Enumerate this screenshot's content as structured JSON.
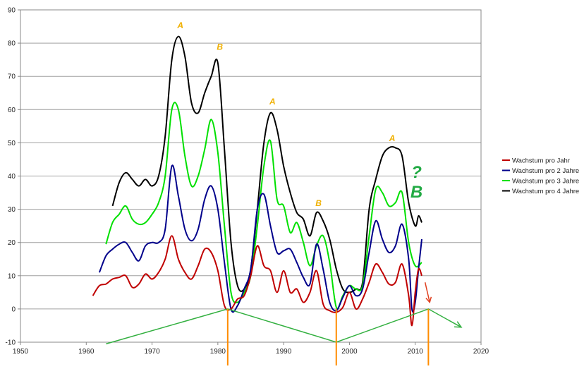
{
  "chart_data": {
    "type": "line",
    "title": "",
    "xlabel": "",
    "ylabel": "",
    "xlim": [
      1950,
      2020
    ],
    "ylim": [
      -10,
      90
    ],
    "x_ticks": [
      "1950",
      "1960",
      "1970",
      "1980",
      "1990",
      "2000",
      "2010",
      "2020"
    ],
    "y_ticks": [
      "-10",
      "0",
      "10",
      "20",
      "30",
      "40",
      "50",
      "60",
      "70",
      "80",
      "90"
    ],
    "grid": "horizontal",
    "legend_position": "right",
    "series": [
      {
        "name": "Wachstum pro Jahr",
        "color": "#c00000",
        "points": [
          [
            1961,
            4
          ],
          [
            1962,
            7
          ],
          [
            1963,
            7.5
          ],
          [
            1964,
            9
          ],
          [
            1965,
            9.5
          ],
          [
            1966,
            10
          ],
          [
            1967,
            6.5
          ],
          [
            1968,
            7.5
          ],
          [
            1969,
            10.5
          ],
          [
            1970,
            9
          ],
          [
            1971,
            11
          ],
          [
            1972,
            15
          ],
          [
            1973,
            22
          ],
          [
            1974,
            15
          ],
          [
            1975,
            11
          ],
          [
            1976,
            9
          ],
          [
            1977,
            13
          ],
          [
            1978,
            18
          ],
          [
            1979,
            17
          ],
          [
            1980,
            11.5
          ],
          [
            1981,
            1
          ],
          [
            1982,
            0
          ],
          [
            1983,
            3
          ],
          [
            1984,
            4
          ],
          [
            1985,
            10
          ],
          [
            1986,
            19
          ],
          [
            1987,
            13
          ],
          [
            1988,
            11.5
          ],
          [
            1989,
            5
          ],
          [
            1990,
            11.5
          ],
          [
            1991,
            5
          ],
          [
            1992,
            6
          ],
          [
            1993,
            2
          ],
          [
            1994,
            5
          ],
          [
            1995,
            11.5
          ],
          [
            1996,
            1.5
          ],
          [
            1997,
            -0.5
          ],
          [
            1998,
            -1
          ],
          [
            1999,
            0.5
          ],
          [
            2000,
            5
          ],
          [
            2001,
            0
          ],
          [
            2002,
            3
          ],
          [
            2003,
            8
          ],
          [
            2004,
            13.5
          ],
          [
            2005,
            11
          ],
          [
            2006,
            7.5
          ],
          [
            2007,
            8
          ],
          [
            2008,
            13.5
          ],
          [
            2009,
            4
          ],
          [
            2009.5,
            -5
          ],
          [
            2010,
            5
          ],
          [
            2010.5,
            12
          ],
          [
            2011,
            10
          ]
        ]
      },
      {
        "name": "Wachstum pro 2 Jahre",
        "color": "#00008b",
        "points": [
          [
            1962,
            11
          ],
          [
            1963,
            16
          ],
          [
            1964,
            18
          ],
          [
            1965,
            19.5
          ],
          [
            1966,
            20
          ],
          [
            1967,
            17
          ],
          [
            1968,
            14.5
          ],
          [
            1969,
            19
          ],
          [
            1970,
            20
          ],
          [
            1971,
            20
          ],
          [
            1972,
            24
          ],
          [
            1973,
            43
          ],
          [
            1974,
            34
          ],
          [
            1975,
            24
          ],
          [
            1976,
            20.5
          ],
          [
            1977,
            24
          ],
          [
            1978,
            33
          ],
          [
            1979,
            37
          ],
          [
            1980,
            30
          ],
          [
            1981,
            14
          ],
          [
            1982,
            0
          ],
          [
            1983,
            1
          ],
          [
            1984,
            6
          ],
          [
            1985,
            12
          ],
          [
            1986,
            30
          ],
          [
            1987,
            34.5
          ],
          [
            1988,
            25
          ],
          [
            1989,
            17
          ],
          [
            1990,
            17.5
          ],
          [
            1991,
            18
          ],
          [
            1992,
            14
          ],
          [
            1993,
            9.5
          ],
          [
            1994,
            7.5
          ],
          [
            1995,
            19.5
          ],
          [
            1996,
            12
          ],
          [
            1997,
            2
          ],
          [
            1998,
            -0.5
          ],
          [
            1999,
            3.5
          ],
          [
            2000,
            7
          ],
          [
            2001,
            4
          ],
          [
            2002,
            6
          ],
          [
            2003,
            17
          ],
          [
            2004,
            26.5
          ],
          [
            2005,
            21
          ],
          [
            2006,
            17
          ],
          [
            2007,
            19
          ],
          [
            2008,
            25.5
          ],
          [
            2009,
            15
          ],
          [
            2009.5,
            0
          ],
          [
            2010,
            2
          ],
          [
            2010.5,
            12
          ],
          [
            2011,
            21
          ]
        ]
      },
      {
        "name": "Wachstum pro 3 Jahre",
        "color": "#00e000",
        "points": [
          [
            1963,
            19.5
          ],
          [
            1964,
            26
          ],
          [
            1965,
            28.5
          ],
          [
            1966,
            31
          ],
          [
            1967,
            27
          ],
          [
            1968,
            25.5
          ],
          [
            1969,
            26
          ],
          [
            1970,
            28.5
          ],
          [
            1971,
            32
          ],
          [
            1972,
            40
          ],
          [
            1973,
            60
          ],
          [
            1974,
            60
          ],
          [
            1975,
            46
          ],
          [
            1976,
            37
          ],
          [
            1977,
            40
          ],
          [
            1978,
            48
          ],
          [
            1979,
            57
          ],
          [
            1980,
            47
          ],
          [
            1981,
            25
          ],
          [
            1982,
            5
          ],
          [
            1983,
            2
          ],
          [
            1984,
            5
          ],
          [
            1985,
            10
          ],
          [
            1986,
            25
          ],
          [
            1987,
            43
          ],
          [
            1988,
            50.5
          ],
          [
            1989,
            33
          ],
          [
            1990,
            31
          ],
          [
            1991,
            23
          ],
          [
            1992,
            26
          ],
          [
            1993,
            20
          ],
          [
            1994,
            13
          ],
          [
            1995,
            19
          ],
          [
            1996,
            22
          ],
          [
            1997,
            14
          ],
          [
            1998,
            0.5
          ],
          [
            1999,
            4
          ],
          [
            2000,
            7
          ],
          [
            2001,
            6
          ],
          [
            2002,
            7
          ],
          [
            2003,
            22
          ],
          [
            2004,
            36
          ],
          [
            2005,
            35
          ],
          [
            2006,
            31
          ],
          [
            2007,
            32
          ],
          [
            2008,
            35
          ],
          [
            2009,
            20
          ],
          [
            2010,
            13
          ],
          [
            2011,
            14
          ]
        ]
      },
      {
        "name": "Wachstum pro 4 Jahre",
        "color": "#000000",
        "points": [
          [
            1964,
            31
          ],
          [
            1965,
            38
          ],
          [
            1966,
            41
          ],
          [
            1967,
            39
          ],
          [
            1968,
            37
          ],
          [
            1969,
            39
          ],
          [
            1970,
            37
          ],
          [
            1971,
            40
          ],
          [
            1972,
            52
          ],
          [
            1973,
            75
          ],
          [
            1974,
            82
          ],
          [
            1975,
            76
          ],
          [
            1976,
            62
          ],
          [
            1977,
            59
          ],
          [
            1978,
            65
          ],
          [
            1979,
            70
          ],
          [
            1980,
            74
          ],
          [
            1981,
            48
          ],
          [
            1982,
            20
          ],
          [
            1983,
            7
          ],
          [
            1984,
            6
          ],
          [
            1985,
            12
          ],
          [
            1986,
            30
          ],
          [
            1987,
            50
          ],
          [
            1988,
            59
          ],
          [
            1989,
            54
          ],
          [
            1990,
            43
          ],
          [
            1991,
            35
          ],
          [
            1992,
            29
          ],
          [
            1993,
            27
          ],
          [
            1994,
            22
          ],
          [
            1995,
            29
          ],
          [
            1996,
            26.5
          ],
          [
            1997,
            21
          ],
          [
            1998,
            12
          ],
          [
            1999,
            6
          ],
          [
            2000,
            5
          ],
          [
            2001,
            6
          ],
          [
            2002,
            8
          ],
          [
            2003,
            30
          ],
          [
            2004,
            39
          ],
          [
            2005,
            46
          ],
          [
            2006,
            48.5
          ],
          [
            2007,
            48.5
          ],
          [
            2008,
            46
          ],
          [
            2009,
            32
          ],
          [
            2010,
            25
          ],
          [
            2010.5,
            28
          ],
          [
            2011,
            26
          ]
        ]
      }
    ],
    "annotations": [
      {
        "text": "A",
        "x": 1974.3,
        "y": 84.5,
        "color": "#f0b000"
      },
      {
        "text": "B",
        "x": 1980.3,
        "y": 78,
        "color": "#f0b000"
      },
      {
        "text": "A",
        "x": 1988.3,
        "y": 61.5,
        "color": "#f0b000"
      },
      {
        "text": "B",
        "x": 1995.3,
        "y": 31,
        "color": "#f0b000"
      },
      {
        "text": "A",
        "x": 2006.5,
        "y": 50.5,
        "color": "#f0b000"
      },
      {
        "text": "?",
        "x": 2010.2,
        "y": 39.5,
        "color": "#22aa44"
      },
      {
        "text": "B",
        "x": 2010.2,
        "y": 33.5,
        "color": "#22aa44"
      }
    ],
    "trend_lines": [
      {
        "name": "green-trend",
        "color": "#33b040",
        "points": [
          [
            1963,
            -10.5
          ],
          [
            1981.5,
            0
          ],
          [
            1998,
            -10
          ],
          [
            2012,
            0
          ],
          [
            2017,
            -5.5
          ]
        ]
      }
    ],
    "vertical_markers": [
      {
        "x": 1981.5,
        "color": "#ff8c00"
      },
      {
        "x": 1998,
        "color": "#ff8c00"
      },
      {
        "x": 2012,
        "color": "#ff8c00"
      }
    ],
    "arrow": {
      "color": "#e04020",
      "from": [
        2011.5,
        8
      ],
      "to": [
        2012.2,
        2
      ]
    }
  }
}
